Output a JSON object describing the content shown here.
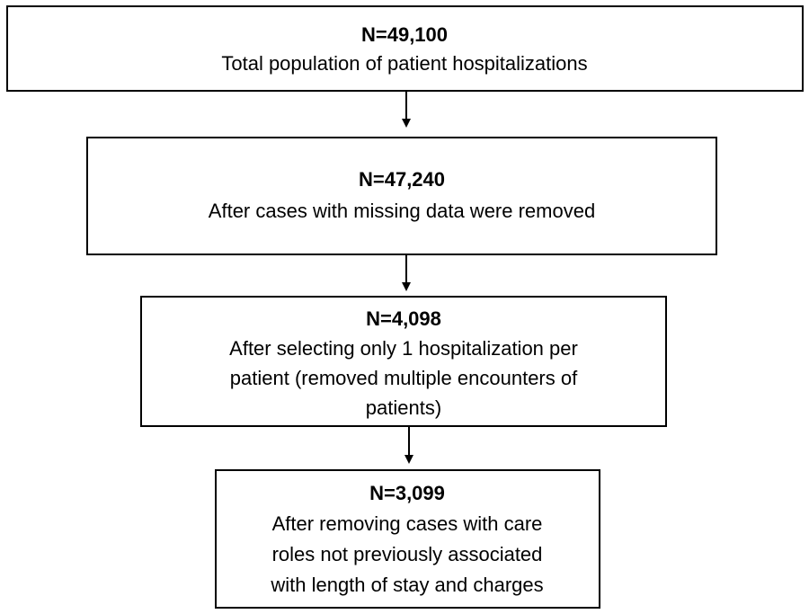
{
  "nodes": [
    {
      "count": "N=49,100",
      "lines": [
        "Total population of patient hospitalizations"
      ]
    },
    {
      "count": "N=47,240",
      "lines": [
        "After cases with missing data were removed"
      ]
    },
    {
      "count": "N=4,098",
      "lines": [
        "After selecting only 1 hospitalization per",
        "patient (removed multiple encounters of",
        "patients)"
      ]
    },
    {
      "count": "N=3,099",
      "lines": [
        "After removing cases with care",
        "roles not previously associated",
        "with length of stay and charges"
      ]
    }
  ]
}
